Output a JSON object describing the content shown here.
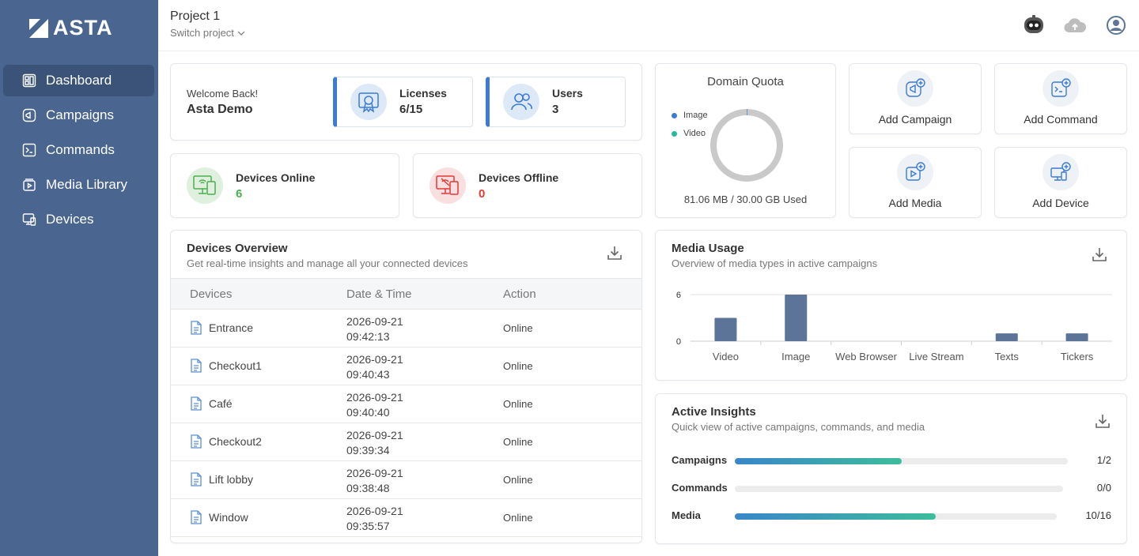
{
  "brand": {
    "name": "ASTA"
  },
  "sidebar": {
    "items": [
      {
        "label": "Dashboard",
        "icon": "dashboard-icon",
        "active": true
      },
      {
        "label": "Campaigns",
        "icon": "campaign-icon",
        "active": false
      },
      {
        "label": "Commands",
        "icon": "terminal-icon",
        "active": false
      },
      {
        "label": "Media Library",
        "icon": "media-library-icon",
        "active": false
      },
      {
        "label": "Devices",
        "icon": "devices-icon",
        "active": false
      }
    ]
  },
  "header": {
    "project_title": "Project 1",
    "switch_label": "Switch project",
    "icons": [
      "robot-icon",
      "cloud-upload-icon",
      "user-account-icon"
    ]
  },
  "welcome": {
    "greeting": "Welcome Back!",
    "name": "Asta Demo",
    "licenses": {
      "label": "Licenses",
      "value": "6/15"
    },
    "users": {
      "label": "Users",
      "value": "3"
    }
  },
  "devices_status": {
    "online": {
      "label": "Devices Online",
      "value": "6",
      "color": "#4caf50"
    },
    "offline": {
      "label": "Devices Offline",
      "value": "0",
      "color": "#e53935"
    }
  },
  "quota": {
    "title": "Domain Quota",
    "legend": [
      {
        "label": "Image",
        "color": "#3a7bd5"
      },
      {
        "label": "Video",
        "color": "#26b99a"
      }
    ],
    "used_text": "81.06 MB / 30.00 GB Used",
    "used_fraction": 0.0026
  },
  "quick_actions": [
    {
      "label": "Add Campaign",
      "icon": "add-campaign-icon"
    },
    {
      "label": "Add Command",
      "icon": "add-command-icon"
    },
    {
      "label": "Add Media",
      "icon": "add-media-icon"
    },
    {
      "label": "Add Device",
      "icon": "add-device-icon"
    }
  ],
  "devices_overview": {
    "title": "Devices Overview",
    "subtitle": "Get real-time insights and manage all your connected devices",
    "columns": [
      "Devices",
      "Date & Time",
      "Action"
    ],
    "rows": [
      {
        "name": "Entrance",
        "date": "2026-09-21",
        "time": "09:42:13",
        "status": "Online"
      },
      {
        "name": "Checkout1",
        "date": "2026-09-21",
        "time": "09:40:43",
        "status": "Online"
      },
      {
        "name": "Café",
        "date": "2026-09-21",
        "time": "09:40:40",
        "status": "Online"
      },
      {
        "name": "Checkout2",
        "date": "2026-09-21",
        "time": "09:39:34",
        "status": "Online"
      },
      {
        "name": "Lift lobby",
        "date": "2026-09-21",
        "time": "09:38:48",
        "status": "Online"
      },
      {
        "name": "Window",
        "date": "2026-09-21",
        "time": "09:35:57",
        "status": "Online"
      }
    ]
  },
  "media_usage": {
    "title": "Media Usage",
    "subtitle": "Overview of media types in active campaigns",
    "chart_data": {
      "type": "bar",
      "categories": [
        "Video",
        "Image",
        "Web Browser",
        "Live Stream",
        "Texts",
        "Tickers"
      ],
      "values": [
        3,
        6,
        0,
        0,
        1,
        1
      ],
      "yticks": [
        "0",
        "6"
      ],
      "ylim": [
        0,
        6
      ],
      "color": "#5b7497"
    }
  },
  "insights": {
    "title": "Active Insights",
    "subtitle": "Quick view of active campaigns, commands, and media",
    "rows": [
      {
        "label": "Campaigns",
        "value": "1/2",
        "fraction": 0.5
      },
      {
        "label": "Commands",
        "value": "0/0",
        "fraction": 0
      },
      {
        "label": "Media",
        "value": "10/16",
        "fraction": 0.625
      }
    ]
  }
}
